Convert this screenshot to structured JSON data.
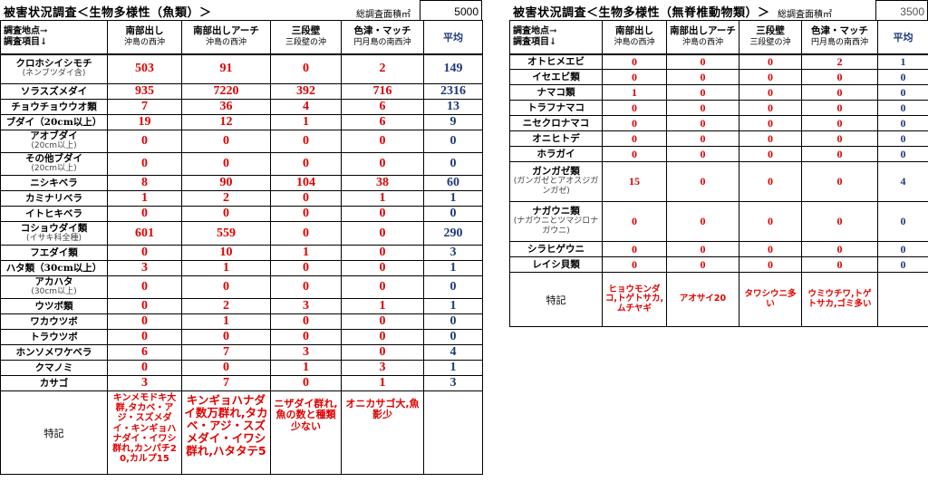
{
  "fish": {
    "title": "被害状況調査＜生物多様性（魚類）＞",
    "area_label": "総調査面積㎡",
    "area_value": "5000",
    "header": {
      "corner_line1": "調査地点→",
      "corner_line2": "調査項目↓",
      "sites": [
        {
          "name": "南部出し",
          "loc": "沖島の西沖"
        },
        {
          "name": "南部出しアーチ",
          "loc": "沖島の西沖"
        },
        {
          "name": "三段壁",
          "loc": "三段壁の沖"
        },
        {
          "name": "色津・マッチ",
          "loc": "円月島の南西沖"
        }
      ],
      "avg": "平均"
    },
    "rows": [
      {
        "name": "クロホシイシモチ",
        "sub": "(ネンブツダイ含)",
        "values": [
          "503",
          "91",
          "0",
          "2"
        ],
        "avg": "149"
      },
      {
        "name": "ソラスズメダイ",
        "sub": "",
        "values": [
          "935",
          "7220",
          "392",
          "716"
        ],
        "avg": "2316"
      },
      {
        "name": "チョウチョウウオ類",
        "sub": "",
        "values": [
          "7",
          "36",
          "4",
          "6"
        ],
        "avg": "13"
      },
      {
        "name": "ブダイ（20cm以上）",
        "sub": "",
        "values": [
          "19",
          "12",
          "1",
          "6"
        ],
        "avg": "9"
      },
      {
        "name": "アオブダイ",
        "sub": "(20cm以上)",
        "values": [
          "0",
          "0",
          "0",
          "0"
        ],
        "avg": "0"
      },
      {
        "name": "その他ブダイ",
        "sub": "(20cm以上)",
        "values": [
          "0",
          "0",
          "0",
          "0"
        ],
        "avg": "0"
      },
      {
        "name": "ニシキベラ",
        "sub": "",
        "values": [
          "8",
          "90",
          "104",
          "38"
        ],
        "avg": "60"
      },
      {
        "name": "カミナリベラ",
        "sub": "",
        "values": [
          "1",
          "2",
          "0",
          "1"
        ],
        "avg": "1"
      },
      {
        "name": "イトヒキベラ",
        "sub": "",
        "values": [
          "0",
          "0",
          "0",
          "0"
        ],
        "avg": "0"
      },
      {
        "name": "コショウダイ類",
        "sub": "(イサキ科全種)",
        "values": [
          "601",
          "559",
          "0",
          "0"
        ],
        "avg": "290"
      },
      {
        "name": "フエダイ類",
        "sub": "",
        "values": [
          "0",
          "10",
          "1",
          "0"
        ],
        "avg": "3"
      },
      {
        "name": "ハタ類（30cm以上）",
        "sub": "",
        "values": [
          "3",
          "1",
          "0",
          "0"
        ],
        "avg": "1"
      },
      {
        "name": "アカハタ",
        "sub": "(30cm以上)",
        "values": [
          "0",
          "0",
          "0",
          "0"
        ],
        "avg": "0"
      },
      {
        "name": "ウツボ類",
        "sub": "",
        "values": [
          "0",
          "2",
          "3",
          "1"
        ],
        "avg": "1"
      },
      {
        "name": "ワカウツボ",
        "sub": "",
        "values": [
          "0",
          "1",
          "0",
          "0"
        ],
        "avg": "0"
      },
      {
        "name": "トラウツボ",
        "sub": "",
        "values": [
          "0",
          "0",
          "0",
          "0"
        ],
        "avg": "0"
      },
      {
        "name": "ホンソメワケベラ",
        "sub": "",
        "values": [
          "6",
          "7",
          "3",
          "0"
        ],
        "avg": "4"
      },
      {
        "name": "クマノミ",
        "sub": "",
        "values": [
          "0",
          "0",
          "1",
          "3"
        ],
        "avg": "1"
      },
      {
        "name": "カサゴ",
        "sub": "",
        "values": [
          "3",
          "7",
          "0",
          "1"
        ],
        "avg": "3"
      }
    ],
    "remarks_label": "特記",
    "remarks": [
      "キンメモドキ大群,タカベ・アジ・スズメダイ・キンギョハナダイ・イワシ群れ,カンパチ20,カルプ15",
      "キンギョハナダイ数万群れ,タカベ・アジ・スズメダイ・イワシ群れ,ハタタテ5",
      "ニザダイ群れ,魚の数と種類少ない",
      "オニカサゴ大,魚影少"
    ]
  },
  "invert": {
    "title": "被害状況調査＜生物多様性（無脊椎動物類）＞",
    "area_label": "総調査面積㎡",
    "area_value": "3500",
    "header": {
      "corner_line1": "調査地点→",
      "corner_line2": "調査項目↓",
      "sites": [
        {
          "name": "南部出し",
          "loc": "沖島の西沖"
        },
        {
          "name": "南部出しアーチ",
          "loc": "沖島の西沖"
        },
        {
          "name": "三段壁",
          "loc": "三段壁の沖"
        },
        {
          "name": "色津・マッチ",
          "loc": "円月島の南西沖"
        }
      ],
      "avg": "平均"
    },
    "rows": [
      {
        "name": "オトヒメエビ",
        "sub": "",
        "values": [
          "0",
          "0",
          "0",
          "2"
        ],
        "avg": "1"
      },
      {
        "name": "イセエビ類",
        "sub": "",
        "values": [
          "0",
          "0",
          "0",
          "0"
        ],
        "avg": "0"
      },
      {
        "name": "ナマコ類",
        "sub": "",
        "values": [
          "1",
          "0",
          "0",
          "0"
        ],
        "avg": "0"
      },
      {
        "name": "トラフナマコ",
        "sub": "",
        "values": [
          "0",
          "0",
          "0",
          "0"
        ],
        "avg": "0"
      },
      {
        "name": "ニセクロナマコ",
        "sub": "",
        "values": [
          "0",
          "0",
          "0",
          "0"
        ],
        "avg": "0"
      },
      {
        "name": "オニヒトデ",
        "sub": "",
        "values": [
          "0",
          "0",
          "0",
          "0"
        ],
        "avg": "0"
      },
      {
        "name": "ホラガイ",
        "sub": "",
        "values": [
          "0",
          "0",
          "0",
          "0"
        ],
        "avg": "0"
      },
      {
        "name": "ガンガゼ類",
        "sub": "(ガンガゼとアオスジガンガゼ)",
        "values": [
          "15",
          "0",
          "0",
          "0"
        ],
        "avg": "4"
      },
      {
        "name": "ナガウニ類",
        "sub": "(ナガウニとツマジロナガウニ)",
        "values": [
          "0",
          "0",
          "0",
          "0"
        ],
        "avg": "0"
      },
      {
        "name": "シラヒゲウニ",
        "sub": "",
        "values": [
          "0",
          "0",
          "0",
          "0"
        ],
        "avg": "0"
      },
      {
        "name": "レイシ貝類",
        "sub": "",
        "values": [
          "0",
          "0",
          "0",
          "0"
        ],
        "avg": "0"
      }
    ],
    "remarks_label": "特記",
    "remarks": [
      "ヒョウモンダコ,トゲトサカ,ムチヤギ",
      "アオサイ20",
      "タワシウニ多い",
      "ウミウチワ,トゲトサカ,ゴミ多い"
    ]
  }
}
